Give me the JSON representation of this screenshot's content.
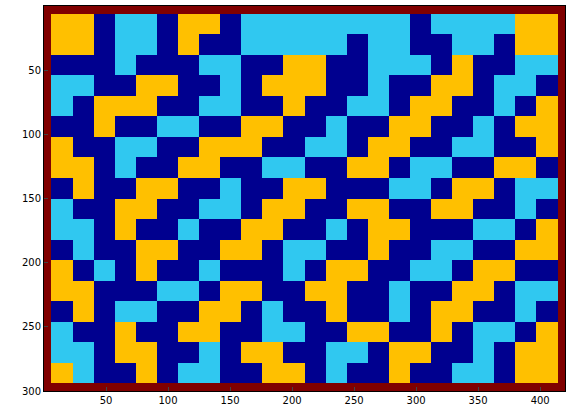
{
  "chart_data": {
    "type": "heatmap",
    "x_edges": [
      0,
      6,
      23,
      40,
      57,
      74,
      91,
      108,
      125,
      142,
      159,
      176,
      193,
      210,
      227,
      244,
      261,
      278,
      295,
      312,
      329,
      346,
      363,
      380,
      397,
      414,
      420
    ],
    "y_edges": [
      0,
      6,
      22,
      38,
      54,
      70,
      86,
      102,
      118,
      134,
      150,
      166,
      182,
      198,
      214,
      230,
      246,
      262,
      278,
      294,
      300
    ],
    "cells": [
      [
        3,
        3,
        3,
        3,
        3,
        3,
        3,
        3,
        3,
        3,
        3,
        3,
        3,
        3,
        3,
        3,
        3,
        3,
        3,
        3,
        3,
        3,
        3,
        3,
        3,
        3
      ],
      [
        3,
        2,
        2,
        0,
        1,
        1,
        0,
        2,
        2,
        0,
        1,
        1,
        1,
        1,
        1,
        1,
        1,
        1,
        0,
        1,
        1,
        1,
        1,
        2,
        2,
        3
      ],
      [
        3,
        2,
        2,
        0,
        1,
        1,
        0,
        2,
        0,
        0,
        1,
        1,
        1,
        1,
        1,
        0,
        1,
        1,
        0,
        0,
        1,
        1,
        0,
        2,
        2,
        3
      ],
      [
        3,
        0,
        0,
        0,
        1,
        0,
        0,
        0,
        1,
        1,
        0,
        0,
        2,
        2,
        0,
        0,
        1,
        1,
        1,
        0,
        2,
        0,
        0,
        1,
        1,
        3
      ],
      [
        3,
        1,
        1,
        0,
        0,
        2,
        2,
        0,
        0,
        1,
        0,
        2,
        2,
        2,
        0,
        0,
        1,
        0,
        0,
        2,
        2,
        0,
        1,
        1,
        0,
        3
      ],
      [
        3,
        1,
        0,
        2,
        2,
        2,
        0,
        0,
        1,
        1,
        0,
        0,
        2,
        0,
        0,
        1,
        1,
        0,
        2,
        2,
        0,
        0,
        1,
        0,
        2,
        3
      ],
      [
        3,
        0,
        0,
        2,
        0,
        0,
        1,
        1,
        0,
        0,
        2,
        2,
        0,
        0,
        1,
        0,
        0,
        2,
        2,
        0,
        0,
        1,
        0,
        2,
        2,
        3
      ],
      [
        3,
        2,
        0,
        0,
        1,
        1,
        0,
        0,
        2,
        2,
        2,
        0,
        0,
        1,
        1,
        0,
        2,
        2,
        0,
        0,
        1,
        1,
        0,
        0,
        2,
        3
      ],
      [
        3,
        2,
        2,
        0,
        1,
        0,
        0,
        2,
        2,
        0,
        0,
        1,
        1,
        0,
        0,
        2,
        2,
        0,
        1,
        1,
        0,
        0,
        2,
        2,
        0,
        3
      ],
      [
        3,
        0,
        2,
        0,
        0,
        2,
        2,
        0,
        0,
        1,
        0,
        0,
        2,
        2,
        0,
        0,
        0,
        1,
        1,
        0,
        2,
        2,
        0,
        1,
        1,
        3
      ],
      [
        3,
        1,
        0,
        0,
        2,
        2,
        0,
        0,
        1,
        1,
        0,
        2,
        2,
        0,
        0,
        2,
        2,
        0,
        0,
        2,
        2,
        0,
        0,
        1,
        0,
        3
      ],
      [
        3,
        1,
        1,
        0,
        2,
        0,
        0,
        1,
        0,
        0,
        2,
        2,
        0,
        0,
        1,
        0,
        2,
        2,
        0,
        0,
        0,
        1,
        1,
        0,
        2,
        3
      ],
      [
        3,
        0,
        1,
        0,
        0,
        2,
        2,
        0,
        0,
        2,
        2,
        0,
        1,
        1,
        0,
        0,
        2,
        0,
        0,
        1,
        1,
        0,
        0,
        2,
        2,
        3
      ],
      [
        3,
        2,
        0,
        1,
        0,
        2,
        0,
        0,
        1,
        0,
        0,
        0,
        1,
        0,
        2,
        2,
        0,
        0,
        1,
        1,
        0,
        2,
        2,
        0,
        0,
        3
      ],
      [
        3,
        2,
        2,
        0,
        0,
        0,
        1,
        1,
        0,
        2,
        2,
        0,
        0,
        2,
        2,
        0,
        0,
        1,
        0,
        0,
        2,
        2,
        0,
        1,
        1,
        3
      ],
      [
        3,
        0,
        2,
        0,
        1,
        1,
        0,
        0,
        2,
        2,
        0,
        1,
        0,
        0,
        2,
        0,
        0,
        1,
        0,
        2,
        2,
        0,
        0,
        1,
        0,
        3
      ],
      [
        3,
        1,
        0,
        0,
        2,
        0,
        0,
        2,
        2,
        0,
        0,
        1,
        1,
        0,
        0,
        2,
        2,
        0,
        0,
        2,
        0,
        1,
        1,
        0,
        2,
        3
      ],
      [
        3,
        1,
        1,
        0,
        2,
        2,
        0,
        0,
        1,
        0,
        2,
        2,
        0,
        0,
        1,
        1,
        0,
        2,
        2,
        0,
        0,
        1,
        0,
        2,
        2,
        3
      ],
      [
        3,
        2,
        1,
        0,
        0,
        2,
        0,
        1,
        1,
        0,
        0,
        2,
        2,
        0,
        1,
        0,
        0,
        2,
        0,
        0,
        1,
        1,
        0,
        2,
        2,
        3
      ],
      [
        3,
        3,
        3,
        3,
        3,
        3,
        3,
        3,
        3,
        3,
        3,
        3,
        3,
        3,
        3,
        3,
        3,
        3,
        3,
        3,
        3,
        3,
        3,
        3,
        3,
        3
      ]
    ],
    "colors": [
      "#00008f",
      "#30c8f0",
      "#ffc000",
      "#800000"
    ],
    "zlim": [
      0,
      3
    ],
    "xlim": [
      0,
      420
    ],
    "ylim": [
      300,
      0
    ],
    "xticks": [
      50,
      100,
      150,
      200,
      250,
      300,
      350,
      400
    ],
    "yticks": [
      50,
      100,
      150,
      200,
      250,
      300
    ]
  }
}
